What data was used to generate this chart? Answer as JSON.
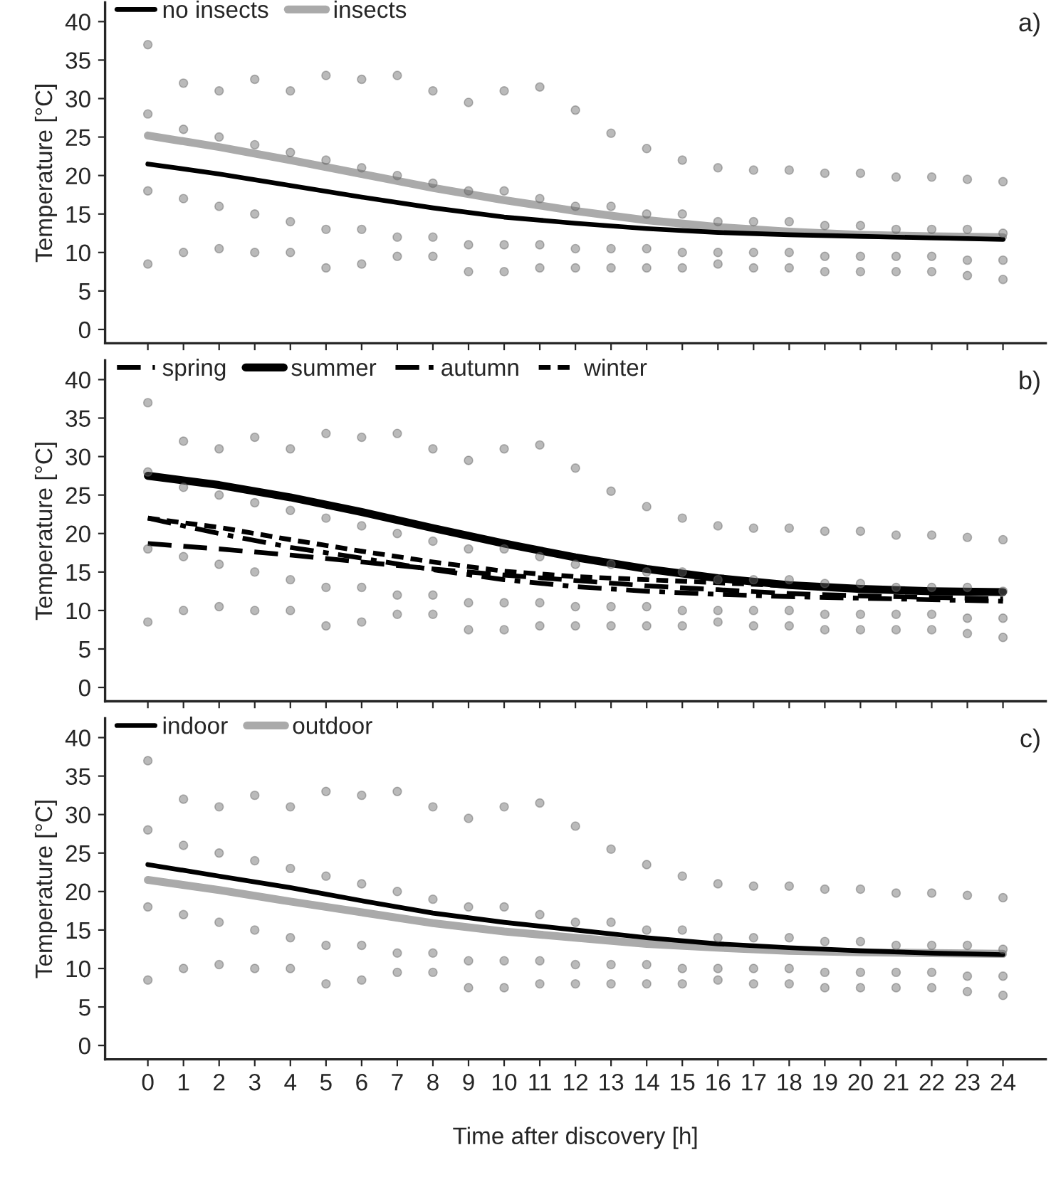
{
  "chart_data": [
    {
      "type": "line",
      "ylabel": "Temperature [°C]",
      "xlim": [
        -1.2,
        25.2
      ],
      "ylim": [
        -1.8,
        42.5
      ],
      "xticks": [
        0,
        1,
        2,
        3,
        4,
        5,
        6,
        7,
        8,
        9,
        10,
        11,
        12,
        13,
        14,
        15,
        16,
        17,
        18,
        19,
        20,
        21,
        22,
        23,
        24
      ],
      "yticks": [
        0,
        5,
        10,
        15,
        20,
        25,
        30,
        35,
        40
      ],
      "tick_labels": "y",
      "grid": false,
      "legend": "top left",
      "annotations": [
        "a)"
      ],
      "series": [
        {
          "type": "scatter",
          "color": "#666666",
          "x": [
            0,
            0,
            0,
            0,
            1,
            1,
            1,
            1,
            2,
            2,
            2,
            2,
            3,
            3,
            3,
            3,
            4,
            4,
            4,
            4,
            5,
            5,
            5,
            5,
            6,
            6,
            6,
            6,
            7,
            7,
            7,
            7,
            8,
            8,
            8,
            8,
            9,
            9,
            9,
            9,
            10,
            10,
            10,
            10,
            11,
            11,
            11,
            11,
            12,
            12,
            12,
            12,
            13,
            13,
            13,
            13,
            14,
            14,
            14,
            14,
            15,
            15,
            15,
            15,
            16,
            16,
            16,
            16,
            17,
            17,
            17,
            17,
            18,
            18,
            18,
            18,
            19,
            19,
            19,
            19,
            20,
            20,
            20,
            20,
            21,
            21,
            21,
            21,
            22,
            22,
            22,
            22,
            23,
            23,
            23,
            23,
            24,
            24,
            24,
            24
          ],
          "values": [
            37,
            28,
            18,
            8.5,
            32,
            26,
            17,
            10,
            31,
            25,
            16,
            10.5,
            32.5,
            24,
            15,
            10,
            31,
            23,
            14,
            10,
            33,
            22,
            13,
            8,
            32.5,
            21,
            13,
            8.5,
            33,
            20,
            12,
            9.5,
            31,
            19,
            12,
            9.5,
            29.5,
            18,
            11,
            7.5,
            31,
            18,
            11,
            7.5,
            31.5,
            17,
            11,
            8,
            28.5,
            16,
            10.5,
            8,
            25.5,
            16,
            10.5,
            8,
            23.5,
            15,
            10.5,
            8,
            22,
            15,
            10,
            8,
            21,
            14,
            10,
            8.5,
            20.7,
            14,
            10,
            8,
            20.7,
            14,
            10,
            8,
            20.3,
            13.5,
            9.5,
            7.5,
            20.3,
            13.5,
            9.5,
            7.5,
            19.8,
            13,
            9.5,
            7.5,
            19.8,
            13,
            9.5,
            7.5,
            19.5,
            13,
            9,
            7,
            19.2,
            12.5,
            9,
            6.5
          ]
        },
        {
          "name": "no insects",
          "color": "#000000",
          "line_style": "solid",
          "x": [
            0,
            2,
            4,
            6,
            8,
            10,
            12,
            14,
            16,
            18,
            20,
            22,
            24
          ],
          "values": [
            21.5,
            20.2,
            18.7,
            17.2,
            15.8,
            14.6,
            13.8,
            13.1,
            12.6,
            12.3,
            12.1,
            11.9,
            11.7
          ]
        },
        {
          "name": "insects",
          "color": "#aaaaaa",
          "line_style": "solid",
          "x": [
            0,
            2,
            4,
            6,
            8,
            10,
            12,
            14,
            16,
            18,
            20,
            22,
            24
          ],
          "values": [
            25.2,
            23.7,
            22,
            20.2,
            18.4,
            16.8,
            15.4,
            14.2,
            13.3,
            12.7,
            12.3,
            12.1,
            12
          ]
        }
      ]
    },
    {
      "type": "line",
      "ylabel": "Temperature [°C]",
      "xlim": [
        -1.2,
        25.2
      ],
      "ylim": [
        -1.8,
        42.5
      ],
      "xticks": [
        0,
        1,
        2,
        3,
        4,
        5,
        6,
        7,
        8,
        9,
        10,
        11,
        12,
        13,
        14,
        15,
        16,
        17,
        18,
        19,
        20,
        21,
        22,
        23,
        24
      ],
      "yticks": [
        0,
        5,
        10,
        15,
        20,
        25,
        30,
        35,
        40
      ],
      "tick_labels": "y",
      "grid": false,
      "legend": "top left",
      "annotations": [
        "b)"
      ],
      "series": [
        {
          "type": "scatter",
          "color": "#666666",
          "x": [
            0,
            0,
            0,
            0,
            1,
            1,
            1,
            1,
            2,
            2,
            2,
            2,
            3,
            3,
            3,
            3,
            4,
            4,
            4,
            4,
            5,
            5,
            5,
            5,
            6,
            6,
            6,
            6,
            7,
            7,
            7,
            7,
            8,
            8,
            8,
            8,
            9,
            9,
            9,
            9,
            10,
            10,
            10,
            10,
            11,
            11,
            11,
            11,
            12,
            12,
            12,
            12,
            13,
            13,
            13,
            13,
            14,
            14,
            14,
            14,
            15,
            15,
            15,
            15,
            16,
            16,
            16,
            16,
            17,
            17,
            17,
            17,
            18,
            18,
            18,
            18,
            19,
            19,
            19,
            19,
            20,
            20,
            20,
            20,
            21,
            21,
            21,
            21,
            22,
            22,
            22,
            22,
            23,
            23,
            23,
            23,
            24,
            24,
            24,
            24
          ],
          "values": [
            37,
            28,
            18,
            8.5,
            32,
            26,
            17,
            10,
            31,
            25,
            16,
            10.5,
            32.5,
            24,
            15,
            10,
            31,
            23,
            14,
            10,
            33,
            22,
            13,
            8,
            32.5,
            21,
            13,
            8.5,
            33,
            20,
            12,
            9.5,
            31,
            19,
            12,
            9.5,
            29.5,
            18,
            11,
            7.5,
            31,
            18,
            11,
            7.5,
            31.5,
            17,
            11,
            8,
            28.5,
            16,
            10.5,
            8,
            25.5,
            16,
            10.5,
            8,
            23.5,
            15,
            10.5,
            8,
            22,
            15,
            10,
            8,
            21,
            14,
            10,
            8.5,
            20.7,
            14,
            10,
            8,
            20.7,
            14,
            10,
            8,
            20.3,
            13.5,
            9.5,
            7.5,
            20.3,
            13.5,
            9.5,
            7.5,
            19.8,
            13,
            9.5,
            7.5,
            19.8,
            13,
            9.5,
            7.5,
            19.5,
            13,
            9,
            7,
            19.2,
            12.5,
            9,
            6.5
          ]
        },
        {
          "name": "spring",
          "color": "#000000",
          "line_style": "dashed",
          "x": [
            0,
            2,
            4,
            6,
            8,
            10,
            12,
            14,
            16,
            18,
            20,
            22,
            24
          ],
          "values": [
            18.7,
            18,
            17.2,
            16.3,
            15.4,
            14.6,
            13.9,
            13.2,
            12.7,
            12.2,
            11.9,
            11.7,
            11.5
          ]
        },
        {
          "name": "summer",
          "color": "#000000",
          "line_style": "solid",
          "x": [
            0,
            2,
            4,
            6,
            8,
            10,
            12,
            14,
            16,
            18,
            20,
            22,
            24
          ],
          "values": [
            27.5,
            26.3,
            24.7,
            22.8,
            20.7,
            18.7,
            16.9,
            15.4,
            14.2,
            13.3,
            12.8,
            12.5,
            12.4
          ]
        },
        {
          "name": "autumn",
          "color": "#000000",
          "line_style": "dashdot",
          "x": [
            0,
            2,
            4,
            6,
            8,
            10,
            12,
            14,
            16,
            18,
            20,
            22,
            24
          ],
          "values": [
            22,
            20,
            18.2,
            16.8,
            15.3,
            14,
            13.1,
            12.5,
            12.1,
            11.8,
            11.6,
            11.4,
            11.2
          ]
        },
        {
          "name": "winter",
          "color": "#000000",
          "line_style": "dotted",
          "x": [
            0,
            2,
            4,
            6,
            8,
            10,
            12,
            14,
            16,
            18,
            20,
            22,
            24
          ],
          "values": [
            22,
            20.8,
            19.2,
            17.7,
            16.3,
            15.1,
            14.4,
            14,
            13.6,
            13.2,
            12.9,
            12.6,
            12.3
          ]
        }
      ]
    },
    {
      "type": "line",
      "ylabel": "Temperature [°C]",
      "xlabel": "Time after discovery [h]",
      "xlim": [
        -1.2,
        25.2
      ],
      "ylim": [
        -1.8,
        42.5
      ],
      "xticks": [
        0,
        1,
        2,
        3,
        4,
        5,
        6,
        7,
        8,
        9,
        10,
        11,
        12,
        13,
        14,
        15,
        16,
        17,
        18,
        19,
        20,
        21,
        22,
        23,
        24
      ],
      "yticks": [
        0,
        5,
        10,
        15,
        20,
        25,
        30,
        35,
        40
      ],
      "grid": false,
      "legend": "top left",
      "annotations": [
        "c)"
      ],
      "series": [
        {
          "type": "scatter",
          "color": "#666666",
          "x": [
            0,
            0,
            0,
            0,
            1,
            1,
            1,
            1,
            2,
            2,
            2,
            2,
            3,
            3,
            3,
            3,
            4,
            4,
            4,
            4,
            5,
            5,
            5,
            5,
            6,
            6,
            6,
            6,
            7,
            7,
            7,
            7,
            8,
            8,
            8,
            8,
            9,
            9,
            9,
            9,
            10,
            10,
            10,
            10,
            11,
            11,
            11,
            11,
            12,
            12,
            12,
            12,
            13,
            13,
            13,
            13,
            14,
            14,
            14,
            14,
            15,
            15,
            15,
            15,
            16,
            16,
            16,
            16,
            17,
            17,
            17,
            17,
            18,
            18,
            18,
            18,
            19,
            19,
            19,
            19,
            20,
            20,
            20,
            20,
            21,
            21,
            21,
            21,
            22,
            22,
            22,
            22,
            23,
            23,
            23,
            23,
            24,
            24,
            24,
            24
          ],
          "values": [
            37,
            28,
            18,
            8.5,
            32,
            26,
            17,
            10,
            31,
            25,
            16,
            10.5,
            32.5,
            24,
            15,
            10,
            31,
            23,
            14,
            10,
            33,
            22,
            13,
            8,
            32.5,
            21,
            13,
            8.5,
            33,
            20,
            12,
            9.5,
            31,
            19,
            12,
            9.5,
            29.5,
            18,
            11,
            7.5,
            31,
            18,
            11,
            7.5,
            31.5,
            17,
            11,
            8,
            28.5,
            16,
            10.5,
            8,
            25.5,
            16,
            10.5,
            8,
            23.5,
            15,
            10.5,
            8,
            22,
            15,
            10,
            8,
            21,
            14,
            10,
            8.5,
            20.7,
            14,
            10,
            8,
            20.7,
            14,
            10,
            8,
            20.3,
            13.5,
            9.5,
            7.5,
            20.3,
            13.5,
            9.5,
            7.5,
            19.8,
            13,
            9.5,
            7.5,
            19.8,
            13,
            9.5,
            7.5,
            19.5,
            13,
            9,
            7,
            19.2,
            12.5,
            9,
            6.5
          ]
        },
        {
          "name": "indoor",
          "color": "#000000",
          "line_style": "solid",
          "x": [
            0,
            2,
            4,
            6,
            8,
            10,
            12,
            14,
            16,
            18,
            20,
            22,
            24
          ],
          "values": [
            23.5,
            22,
            20.5,
            18.8,
            17.2,
            16,
            15,
            14,
            13.2,
            12.7,
            12.3,
            12,
            11.8
          ]
        },
        {
          "name": "outdoor",
          "color": "#aaaaaa",
          "line_style": "solid",
          "x": [
            0,
            2,
            4,
            6,
            8,
            10,
            12,
            14,
            16,
            18,
            20,
            22,
            24
          ],
          "values": [
            21.5,
            20.2,
            18.7,
            17.3,
            15.9,
            14.8,
            14,
            13.2,
            12.7,
            12.3,
            12.1,
            12,
            11.9
          ]
        }
      ]
    }
  ]
}
